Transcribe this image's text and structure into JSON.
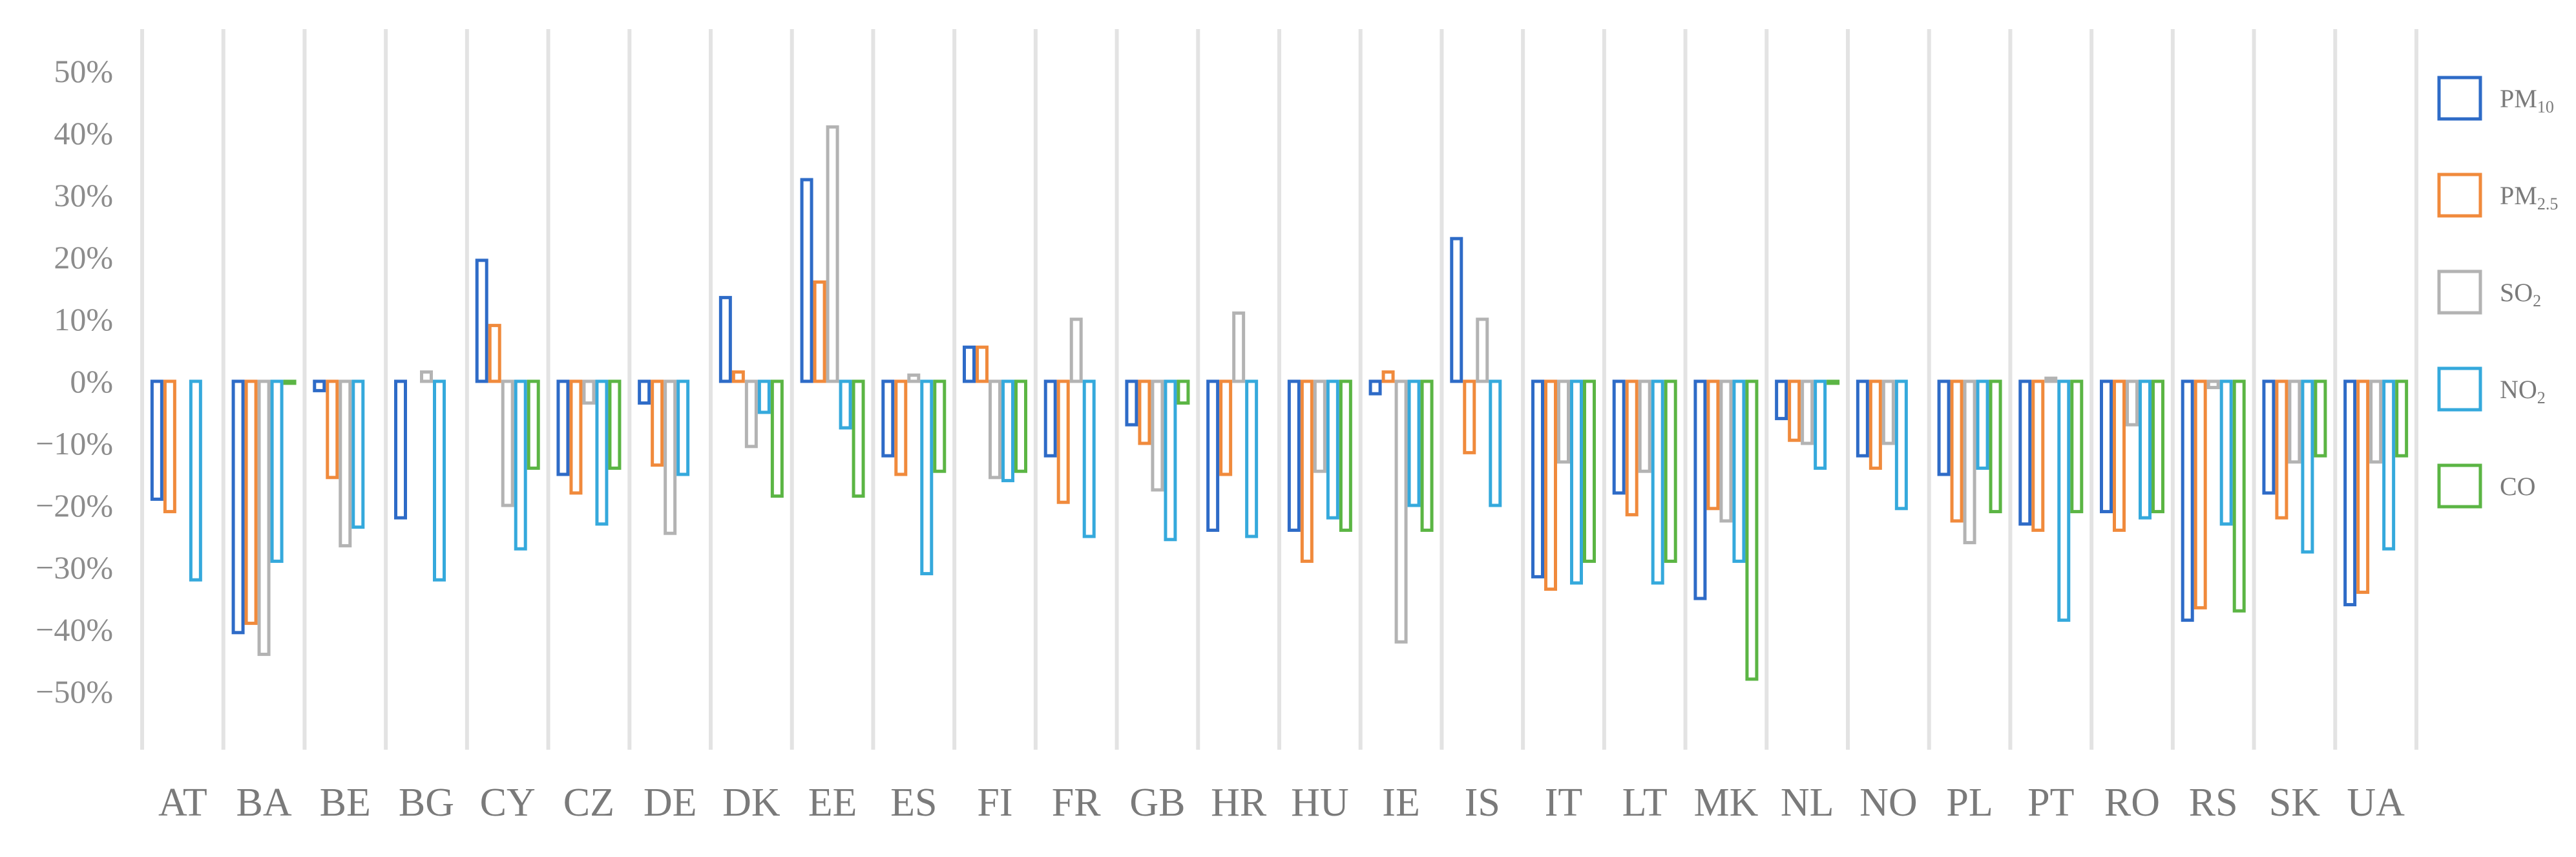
{
  "chart_data": {
    "type": "bar",
    "title": "",
    "xlabel": "",
    "ylabel": "",
    "ylim": [
      -55,
      52
    ],
    "y_ticks": [
      50,
      40,
      30,
      20,
      10,
      0,
      -10,
      -20,
      -30,
      -40,
      -50
    ],
    "y_tick_labels": [
      "50%",
      "40%",
      "30%",
      "20%",
      "10%",
      "0%",
      "−10%",
      "−20%",
      "−30%",
      "−40%",
      "−50%"
    ],
    "grid": "vertical category separators",
    "legend_position": "right",
    "categories": [
      "AT",
      "BA",
      "BE",
      "BG",
      "CY",
      "CZ",
      "DE",
      "DK",
      "EE",
      "ES",
      "FI",
      "FR",
      "GB",
      "HR",
      "HU",
      "IE",
      "IS",
      "IT",
      "LT",
      "MK",
      "NL",
      "NO",
      "PL",
      "PT",
      "RO",
      "RS",
      "SK",
      "UA"
    ],
    "series": [
      {
        "name": "PM10",
        "label_main": "PM",
        "label_sub": "10",
        "color": "#2e6bc7",
        "values": [
          -19,
          -40.5,
          -1.5,
          -22,
          19.5,
          -15,
          -3.5,
          13.5,
          32.5,
          -12,
          5.5,
          -12,
          -7,
          -24,
          -24,
          -2,
          23,
          -31.5,
          -18,
          -35,
          -6,
          -12,
          -15,
          -23,
          -21,
          -38.5,
          -18,
          -36
        ]
      },
      {
        "name": "PM2.5",
        "label_main": "PM",
        "label_sub": "2.5",
        "color": "#f08a3c",
        "values": [
          -21,
          -39,
          -15.5,
          null,
          9,
          -18,
          -13.5,
          1.5,
          16,
          -15,
          5.5,
          -19.5,
          -10,
          -15,
          -29,
          1.5,
          -11.5,
          -33.5,
          -21.5,
          -20.5,
          -9.5,
          -14,
          -22.5,
          -24,
          -24,
          -36.5,
          -22,
          -34
        ]
      },
      {
        "name": "SO2",
        "label_main": "SO",
        "label_sub": "2",
        "color": "#b3b3b3",
        "values": [
          null,
          -44,
          -26.5,
          1.5,
          -20,
          -3.5,
          -24.5,
          -10.5,
          41,
          1,
          -15.5,
          10,
          -17.5,
          11,
          -14.5,
          -42,
          10,
          -13,
          -14.5,
          -22.5,
          -10,
          -10,
          -26,
          0.5,
          -7,
          -1,
          -13,
          -13
        ]
      },
      {
        "name": "NO2",
        "label_main": "NO",
        "label_sub": "2",
        "color": "#35a9dc",
        "values": [
          -32,
          -29,
          -23.5,
          -32,
          -27,
          -23,
          -15,
          -5,
          -7.5,
          -31,
          -16,
          -25,
          -25.5,
          -25,
          -22,
          -20,
          -20,
          -32.5,
          -32.5,
          -29,
          -14,
          -20.5,
          -14,
          -38.5,
          -22,
          -23,
          -27.5,
          -27
        ]
      },
      {
        "name": "CO",
        "label_main": "CO",
        "label_sub": "",
        "color": "#5bb544",
        "values": [
          null,
          0,
          null,
          null,
          -14,
          -14,
          null,
          -18.5,
          -18.5,
          -14.5,
          -14.5,
          null,
          -3.5,
          null,
          -24,
          -24,
          null,
          -29,
          -29,
          -48,
          0,
          null,
          -21,
          -21,
          -21,
          -37,
          -12,
          -12
        ]
      }
    ]
  }
}
